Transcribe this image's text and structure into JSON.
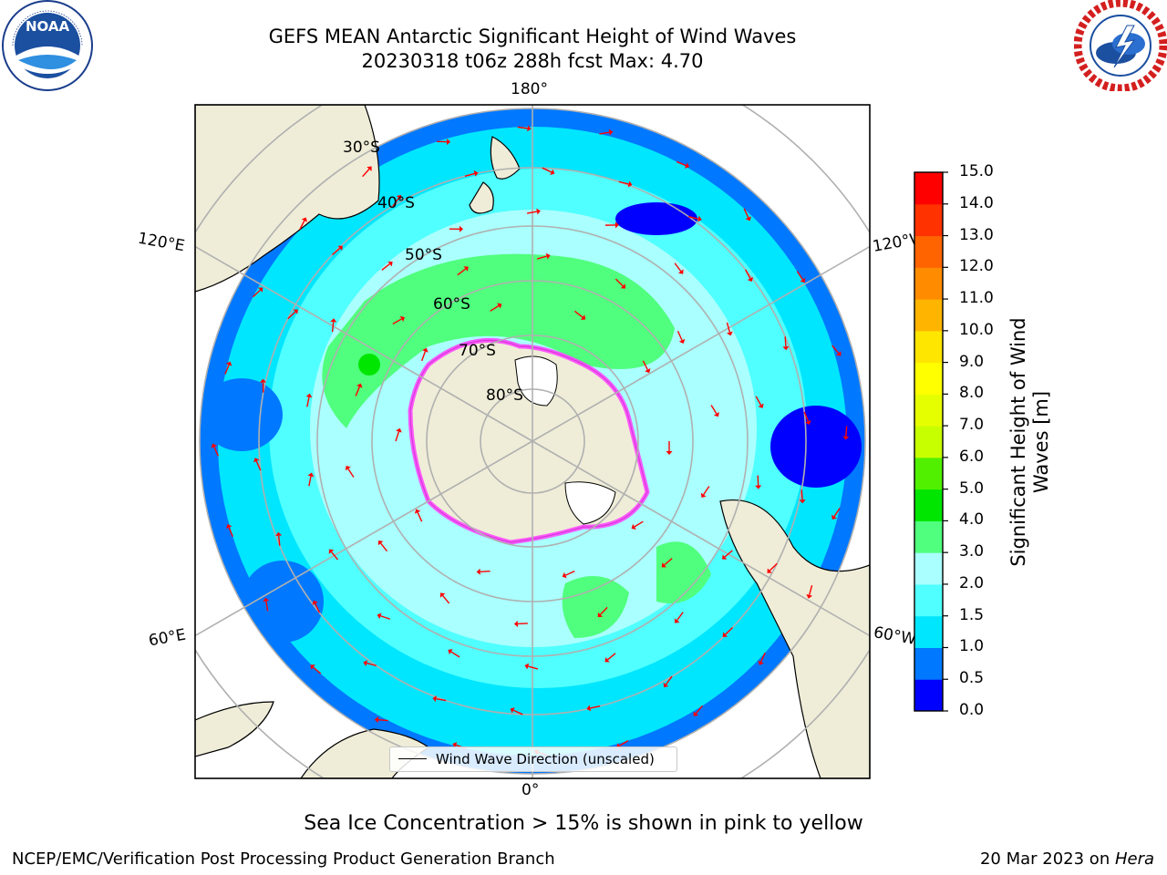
{
  "header": {
    "title_line1": "GEFS MEAN Antarctic Significant Height of Wind Waves",
    "title_line2": "20230318 t06z 288h fcst   Max: 4.70"
  },
  "logos": {
    "left": {
      "name": "noaa-logo",
      "text": "NOAA",
      "ring_text": "NATIONAL OCEANIC AND ATMOSPHERIC ADMINISTRATION · U.S. DEPARTMENT OF COMMERCE"
    },
    "right": {
      "name": "nws-logo",
      "ring_text": "NATIONAL WEATHER SERVICE"
    }
  },
  "map": {
    "projection": "south-polar-stereographic",
    "longitude_labels": {
      "top": "180°",
      "bottom": "0°",
      "upper_left": "120°E",
      "upper_right": "120°W",
      "lower_left": "60°E",
      "lower_right": "60°W"
    },
    "latitude_labels": [
      "30°S",
      "40°S",
      "50°S",
      "60°S",
      "70°S",
      "80°S"
    ],
    "legend_label": "Wind Wave Direction (unscaled)",
    "arrow_color": "#ff0000",
    "land_color": "#efedd8",
    "grid_color": "#b0b0b0"
  },
  "colorbar": {
    "title": "Significant Height of Wind Waves [m]",
    "ticks": [
      "0.0",
      "0.5",
      "1.0",
      "1.5",
      "2.0",
      "3.0",
      "4.0",
      "5.0",
      "6.0",
      "7.0",
      "8.0",
      "9.0",
      "10.0",
      "11.0",
      "12.0",
      "13.0",
      "14.0",
      "15.0"
    ],
    "colors": [
      "#0000ff",
      "#0078ff",
      "#00e6ff",
      "#50ffff",
      "#aaffff",
      "#50ff7d",
      "#00e600",
      "#50f000",
      "#c8ff00",
      "#e6ff00",
      "#ffff00",
      "#ffe600",
      "#ffb400",
      "#ff8c00",
      "#ff6400",
      "#ff3200",
      "#ff0000"
    ]
  },
  "caption": "Sea Ice Concentration > 15% is shown in pink to yellow",
  "footer": {
    "left": "NCEP/EMC/Verification Post Processing Product Generation Branch",
    "right_prefix": "20 Mar 2023 on ",
    "right_host": "Hera"
  }
}
